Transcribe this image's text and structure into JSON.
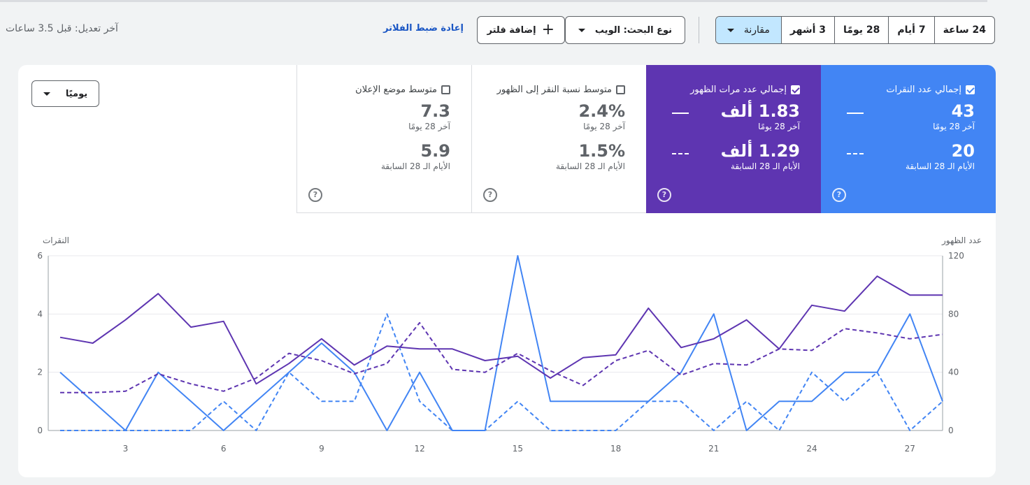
{
  "topbar": {
    "ranges": [
      "24 ساعة",
      "7 أيام",
      "28 يومًا",
      "3 أشهر"
    ],
    "compare_label": "مقارنة",
    "search_type": "نوع البحث: الويب",
    "add_filter": "إضافة فلتر",
    "reset_filters": "إعادة ضبط الفلاتر",
    "last_modified": "آخر تعديل: قبل 3.5 ساعات"
  },
  "metrics": [
    {
      "label": "إجمالي عدد النقرات",
      "checked": true,
      "value": "43",
      "period": "آخر 28 يومًا",
      "prev_value": "20",
      "prev_period": "الأيام الـ 28 السابقة",
      "color": "#4285f4"
    },
    {
      "label": "إجمالي عدد مرات الظهور",
      "checked": true,
      "value": "1.83 ألف",
      "period": "آخر 28 يومًا",
      "prev_value": "1.29 ألف",
      "prev_period": "الأيام الـ 28 السابقة",
      "color": "#5e35b1"
    },
    {
      "label": "متوسط نسبة النقر إلى الظهور",
      "checked": false,
      "value": "2.4%",
      "period": "آخر 28 يومًا",
      "prev_value": "1.5%",
      "prev_period": "الأيام الـ 28 السابقة"
    },
    {
      "label": "متوسط موضع الإعلان",
      "checked": false,
      "value": "7.3",
      "period": "آخر 28 يومًا",
      "prev_value": "5.9",
      "prev_period": "الأيام الـ 28 السابقة"
    }
  ],
  "help_glyph": "?",
  "granularity": "يوميًا",
  "chart_data": {
    "type": "line",
    "y_left_label": "النقرات",
    "y_right_label": "عدد الظهور",
    "y_left_ticks": [
      0,
      2,
      4,
      6
    ],
    "y_right_ticks": [
      0,
      40,
      80,
      120
    ],
    "ylim_left": [
      0,
      6
    ],
    "ylim_right": [
      0,
      120
    ],
    "x": [
      1,
      2,
      3,
      4,
      5,
      6,
      7,
      8,
      9,
      10,
      11,
      12,
      13,
      14,
      15,
      16,
      17,
      18,
      19,
      20,
      21,
      22,
      23,
      24,
      25,
      26,
      27,
      28
    ],
    "x_ticks": [
      3,
      6,
      9,
      12,
      15,
      18,
      21,
      24,
      27
    ],
    "series": [
      {
        "axis": "left",
        "style": "solid",
        "color": "#4285f4",
        "values": [
          2,
          1,
          0,
          2,
          1,
          0,
          1,
          2,
          3,
          2,
          0,
          2,
          0,
          0,
          6,
          1,
          1,
          1,
          1,
          2,
          4,
          0,
          1,
          1,
          2,
          2,
          4,
          1
        ]
      },
      {
        "axis": "left",
        "style": "dashed",
        "color": "#4285f4",
        "values": [
          0,
          0,
          0,
          0,
          0,
          1,
          0,
          2,
          1,
          1,
          4,
          1,
          0,
          0,
          1,
          0,
          0,
          0,
          1,
          1,
          0,
          1,
          0,
          2,
          1,
          2,
          0,
          1
        ]
      },
      {
        "axis": "right",
        "style": "solid",
        "color": "#5e35b1",
        "values": [
          64,
          60,
          76,
          94,
          71,
          75,
          32,
          46,
          63,
          45,
          58,
          56,
          56,
          48,
          51,
          36,
          50,
          52,
          84,
          57,
          63,
          76,
          56,
          86,
          82,
          106,
          93,
          93
        ]
      },
      {
        "axis": "right",
        "style": "dashed",
        "color": "#5e35b1",
        "values": [
          26,
          26,
          27,
          39,
          32,
          27,
          36,
          53,
          48,
          39,
          46,
          74,
          42,
          40,
          53,
          41,
          31,
          48,
          55,
          38,
          46,
          45,
          56,
          55,
          70,
          67,
          63,
          66
        ]
      }
    ]
  }
}
